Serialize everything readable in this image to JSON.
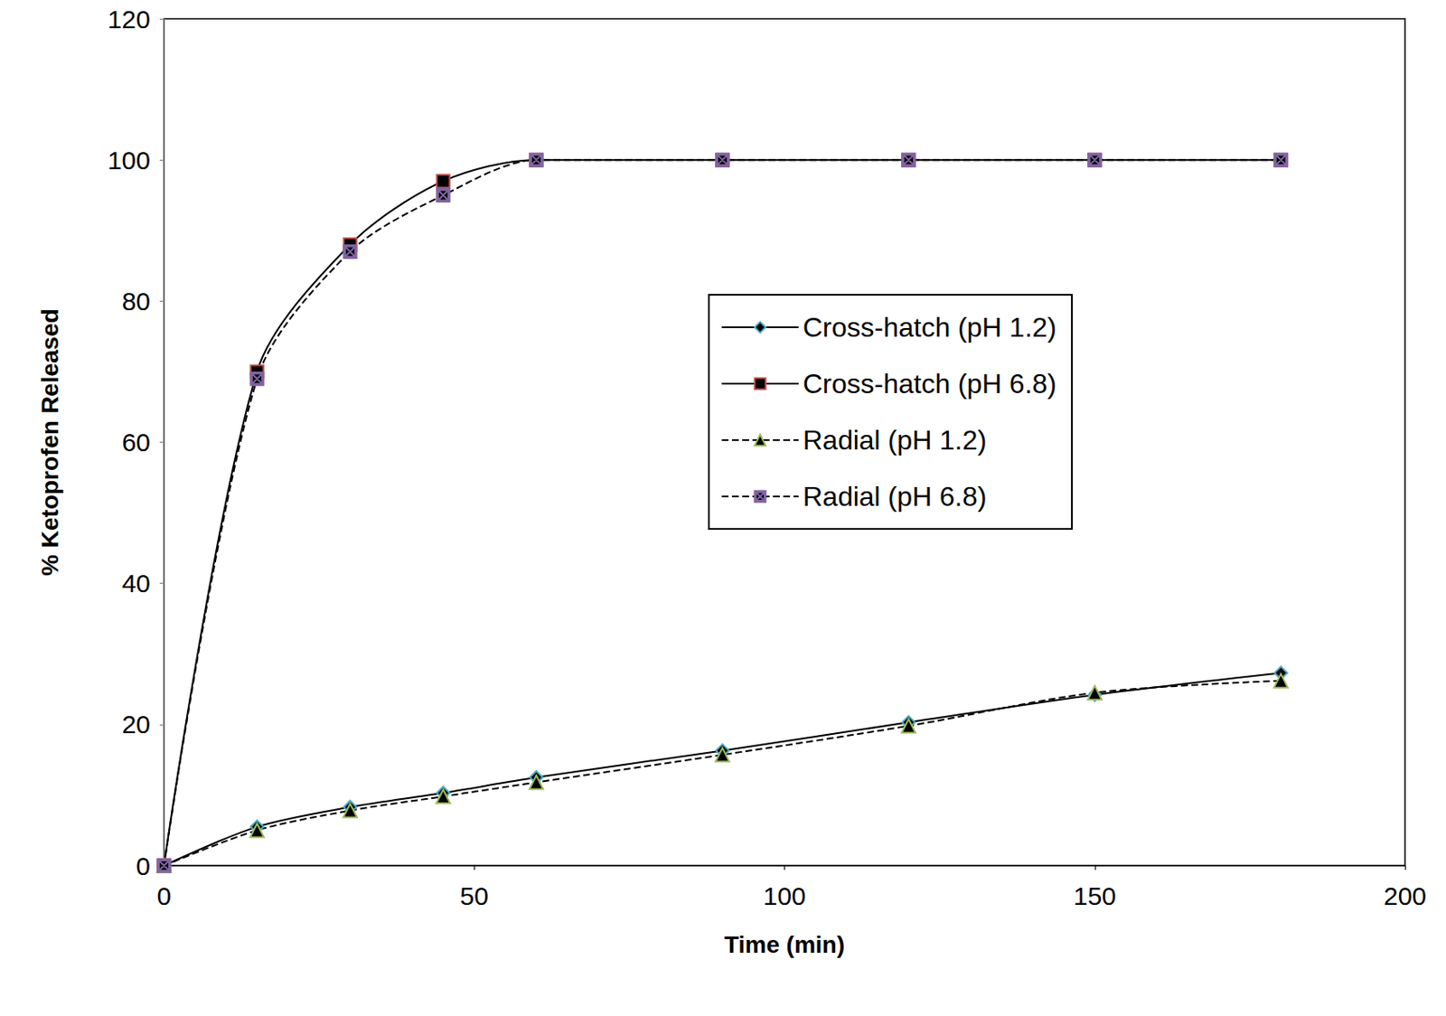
{
  "chart_data": {
    "type": "line",
    "x_label": "Time (min)",
    "y_label": "% Ketoprofen Released",
    "x": [
      0,
      15,
      30,
      45,
      60,
      90,
      120,
      150,
      180
    ],
    "xlim": [
      0,
      200
    ],
    "xticks": [
      0,
      50,
      100,
      150,
      200
    ],
    "ylim": [
      0,
      120
    ],
    "yticks": [
      0,
      20,
      40,
      60,
      80,
      100,
      120
    ],
    "grid": false,
    "legend": "right",
    "series": [
      {
        "name": "Cross-hatch (pH 1.2)",
        "color": "#4bacc6",
        "marker": "diamond",
        "line_style": "solid",
        "values": [
          0,
          5.5,
          8.3,
          10.3,
          12.5,
          16.3,
          20.3,
          24.2,
          27.3
        ]
      },
      {
        "name": "Cross-hatch (pH 6.8)",
        "color": "#c0504d",
        "marker": "square",
        "line_style": "solid",
        "values": [
          0,
          70,
          88,
          97,
          100,
          100,
          100,
          100,
          100
        ]
      },
      {
        "name": "Radial (pH 1.2)",
        "color": "#9bbb59",
        "marker": "triangle",
        "line_style": "dashed",
        "values": [
          0,
          5.0,
          7.8,
          9.8,
          11.8,
          15.7,
          19.8,
          24.5,
          26.2
        ]
      },
      {
        "name": "Radial (pH 6.8)",
        "color": "#8064a2",
        "marker": "x",
        "line_style": "dashed",
        "values": [
          0,
          69,
          87,
          95,
          100,
          100,
          100,
          100,
          100
        ]
      }
    ]
  }
}
